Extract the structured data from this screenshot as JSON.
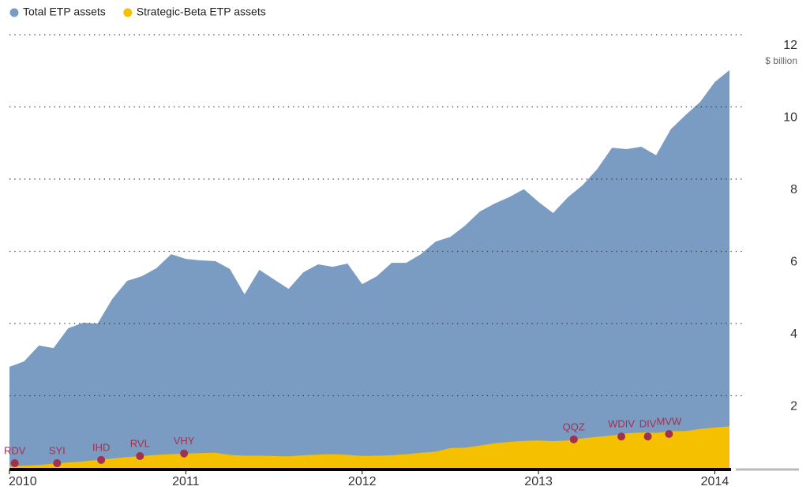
{
  "chart_data": {
    "type": "area",
    "legend": "top-left",
    "y_unit": "$ billion",
    "x": [
      2010.0,
      2010.083,
      2010.167,
      2010.25,
      2010.333,
      2010.417,
      2010.5,
      2010.583,
      2010.667,
      2010.75,
      2010.833,
      2010.917,
      2011.0,
      2011.083,
      2011.167,
      2011.25,
      2011.333,
      2011.417,
      2011.5,
      2011.583,
      2011.667,
      2011.75,
      2011.833,
      2011.917,
      2012.0,
      2012.083,
      2012.167,
      2012.25,
      2012.333,
      2012.417,
      2012.5,
      2012.583,
      2012.667,
      2012.75,
      2012.833,
      2012.917,
      2013.0,
      2013.083,
      2013.167,
      2013.25,
      2013.333,
      2013.417,
      2013.5,
      2013.583,
      2013.667,
      2013.75,
      2013.833,
      2013.917,
      2014.0,
      2014.083
    ],
    "series": [
      {
        "name": "Total ETP assets",
        "color": "#7a9cc2",
        "values": [
          2.8,
          2.95,
          3.39,
          3.32,
          3.87,
          4.02,
          4.0,
          4.68,
          5.18,
          5.31,
          5.53,
          5.92,
          5.79,
          5.75,
          5.73,
          5.51,
          4.81,
          5.49,
          5.22,
          4.96,
          5.42,
          5.64,
          5.57,
          5.66,
          5.09,
          5.31,
          5.68,
          5.68,
          5.92,
          6.27,
          6.4,
          6.71,
          7.1,
          7.32,
          7.5,
          7.72,
          7.37,
          7.06,
          7.5,
          7.83,
          8.28,
          8.87,
          8.83,
          8.9,
          8.66,
          9.38,
          9.77,
          10.14,
          10.69,
          11.02
        ]
      },
      {
        "name": "Strategic-Beta ETP assets",
        "color": "#f5c000",
        "values": [
          0.05,
          0.06,
          0.08,
          0.12,
          0.15,
          0.18,
          0.22,
          0.26,
          0.3,
          0.33,
          0.36,
          0.38,
          0.4,
          0.41,
          0.42,
          0.36,
          0.34,
          0.34,
          0.33,
          0.32,
          0.35,
          0.37,
          0.38,
          0.36,
          0.33,
          0.34,
          0.35,
          0.38,
          0.42,
          0.45,
          0.55,
          0.56,
          0.62,
          0.68,
          0.72,
          0.75,
          0.76,
          0.74,
          0.76,
          0.82,
          0.86,
          0.9,
          0.96,
          0.98,
          0.97,
          1.02,
          1.02,
          1.08,
          1.12,
          1.15
        ]
      }
    ],
    "markers_color": "#a3304f",
    "markers": [
      {
        "label": "RDV",
        "x": 2010.03,
        "y": 0.13
      },
      {
        "label": "SYI",
        "x": 2010.27,
        "y": 0.13
      },
      {
        "label": "IHD",
        "x": 2010.52,
        "y": 0.22
      },
      {
        "label": "RVL",
        "x": 2010.74,
        "y": 0.33
      },
      {
        "label": "VHY",
        "x": 2010.99,
        "y": 0.4
      },
      {
        "label": "QQZ",
        "x": 2013.2,
        "y": 0.79
      },
      {
        "label": "WDIV",
        "x": 2013.47,
        "y": 0.87
      },
      {
        "label": "DIV",
        "x": 2013.62,
        "y": 0.87
      },
      {
        "label": "MVW",
        "x": 2013.74,
        "y": 0.94
      }
    ],
    "xlim": [
      2010,
      2014.083
    ],
    "xticks": [
      2010,
      2011,
      2012,
      2013,
      2014
    ],
    "ylim": [
      0,
      12
    ],
    "yticks": [
      2,
      4,
      6,
      8,
      10,
      12
    ],
    "grid": true
  }
}
